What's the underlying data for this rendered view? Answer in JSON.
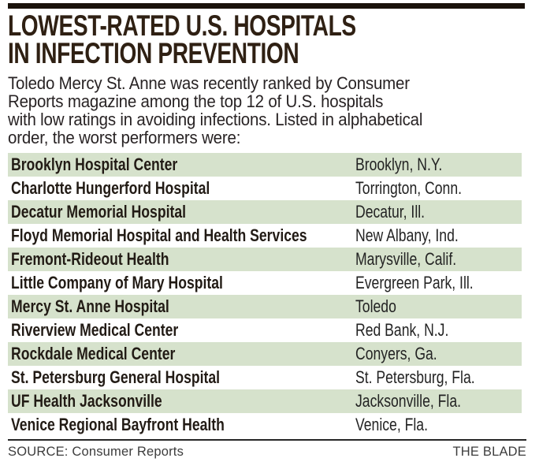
{
  "header": {
    "title_line1": "LOWEST-RATED U.S. HOSPITALS",
    "title_line2": "IN INFECTION PREVENTION"
  },
  "intro": {
    "lines": [
      "Toledo Mercy St. Anne was recently ranked by Consumer",
      "Reports magazine among the top 12 of U.S. hospitals",
      "with low ratings in avoiding infections. Listed in alphabetical",
      "order, the worst performers were:"
    ]
  },
  "table": {
    "stripe_color": "#d6e2cc",
    "columns": [
      "hospital",
      "location"
    ],
    "rows": [
      {
        "name": "Brooklyn Hospital Center",
        "location": "Brooklyn, N.Y."
      },
      {
        "name": "Charlotte Hungerford Hospital",
        "location": "Torrington, Conn."
      },
      {
        "name": "Decatur Memorial Hospital",
        "location": "Decatur, Ill."
      },
      {
        "name": "Floyd Memorial Hospital and Health Services",
        "location": "New Albany, Ind."
      },
      {
        "name": "Fremont-Rideout Health",
        "location": "Marysville, Calif."
      },
      {
        "name": "Little Company of Mary Hospital",
        "location": "Evergreen Park, Ill."
      },
      {
        "name": "Mercy St. Anne Hospital",
        "location": "Toledo"
      },
      {
        "name": "Riverview Medical Center",
        "location": "Red Bank, N.J."
      },
      {
        "name": "Rockdale Medical Center",
        "location": "Conyers, Ga."
      },
      {
        "name": "St. Petersburg General Hospital",
        "location": "St. Petersburg, Fla."
      },
      {
        "name": "UF Health Jacksonville",
        "location": "Jacksonville, Fla."
      },
      {
        "name": "Venice Regional Bayfront Health",
        "location": "Venice, Fla."
      }
    ]
  },
  "footer": {
    "source": "SOURCE: Consumer Reports",
    "credit": "THE BLADE"
  },
  "colors": {
    "top_bar": "#1a120b",
    "title_text": "#2f2013",
    "row_stripe": "#d6e2cc",
    "body_text": "#282324"
  }
}
